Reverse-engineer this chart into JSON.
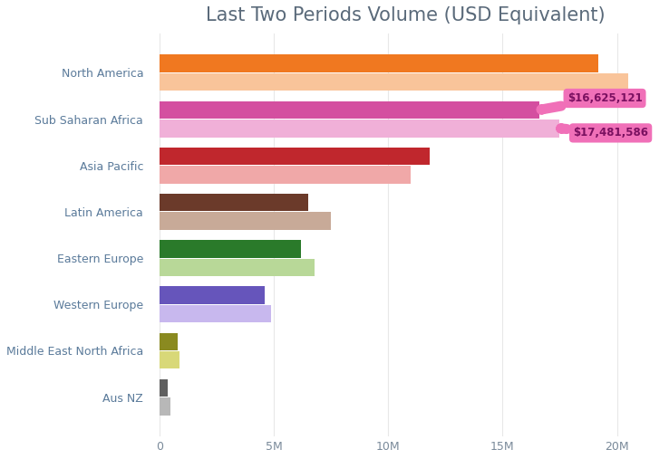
{
  "title": "Last Two Periods Volume (USD Equivalent)",
  "title_color": "#5a6a7a",
  "title_fontsize": 15,
  "categories": [
    "North America",
    "Sub Saharan Africa",
    "Asia Pacific",
    "Latin America",
    "Eastern Europe",
    "Western Europe",
    "Middle East North Africa",
    "Aus NZ"
  ],
  "current_values": [
    19200000,
    16625121,
    11800000,
    6500000,
    6200000,
    4600000,
    800000,
    380000
  ],
  "previous_values": [
    20500000,
    17481586,
    11000000,
    7500000,
    6800000,
    4900000,
    900000,
    480000
  ],
  "current_colors": [
    "#f07820",
    "#d44fa0",
    "#c0272d",
    "#6b3a2a",
    "#2a7a2a",
    "#6655bb",
    "#8a8a20",
    "#606060"
  ],
  "previous_colors": [
    "#f9c49a",
    "#f0b0d8",
    "#f0a8a8",
    "#c8aa98",
    "#b8d898",
    "#c8b8ee",
    "#d8d878",
    "#b8b8b8"
  ],
  "annotation_texts": [
    "$16,625,121",
    "$17,481,586"
  ],
  "annotation_bg": "#f070b8",
  "annotation_text_color": "#7a1060",
  "xlabel_color": "#7a8a9a",
  "tick_label_color": "#5a7a9a",
  "xlim": [
    -500000,
    22000000
  ],
  "xticks": [
    0,
    5000000,
    10000000,
    15000000,
    20000000
  ],
  "xtick_labels": [
    "0",
    "5M",
    "10M",
    "15M",
    "20M"
  ],
  "bar_height": 0.38,
  "bar_gap": 0.02,
  "background_color": "#ffffff"
}
